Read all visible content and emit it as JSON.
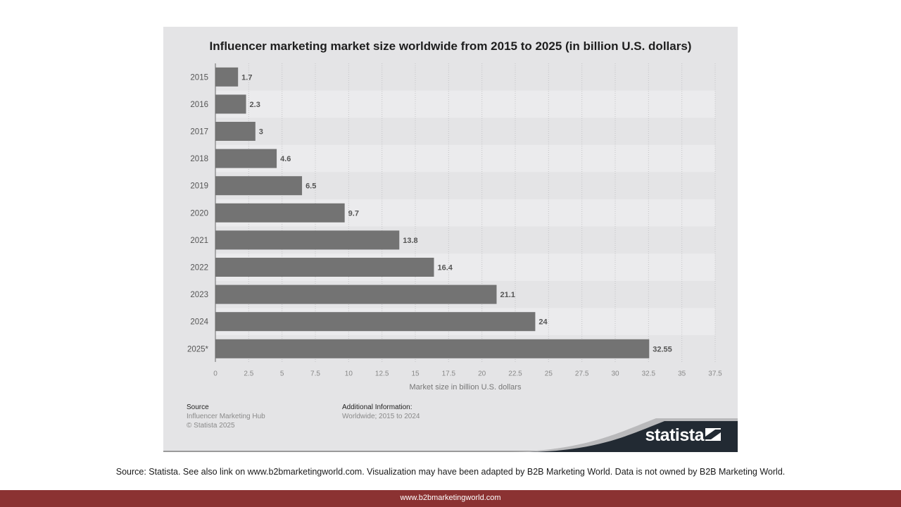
{
  "chart_data": {
    "type": "bar",
    "orientation": "horizontal",
    "title": "Influencer marketing market size worldwide from 2015 to 2025 (in billion U.S. dollars)",
    "categories": [
      "2015",
      "2016",
      "2017",
      "2018",
      "2019",
      "2020",
      "2021",
      "2022",
      "2023",
      "2024",
      "2025*"
    ],
    "values": [
      1.7,
      2.3,
      3,
      4.6,
      6.5,
      9.7,
      13.8,
      16.4,
      21.1,
      24,
      32.55
    ],
    "value_labels": [
      "1.7",
      "2.3",
      "3",
      "4.6",
      "6.5",
      "9.7",
      "13.8",
      "16.4",
      "21.1",
      "24",
      "32.55"
    ],
    "xlabel": "Market size in billion U.S. dollars",
    "ylabel": "",
    "xlim": [
      0,
      37.5
    ],
    "x_ticks": [
      "0",
      "2.5",
      "5",
      "7.5",
      "10",
      "12.5",
      "15",
      "17.5",
      "20",
      "22.5",
      "25",
      "27.5",
      "30",
      "32.5",
      "35",
      "37.5"
    ],
    "grid": true,
    "colors": {
      "bar": "#737373",
      "panel": "#e4e4e6",
      "band": "#ebebed"
    }
  },
  "source": {
    "heading": "Source",
    "line1": "Influencer Marketing Hub",
    "line2": "© Statista 2025"
  },
  "additional": {
    "heading": "Additional Information:",
    "line1": "Worldwide; 2015 to 2024"
  },
  "brand": {
    "name": "statista",
    "color": "#222a33"
  },
  "caption": "Source: Statista. See also link on www.b2bmarketingworld.com. Visualization may have been adapted by B2B Marketing World. Data is not owned by B2B Marketing World.",
  "footer": {
    "text": "www.b2bmarketingworld.com",
    "color": "#8b3232"
  }
}
